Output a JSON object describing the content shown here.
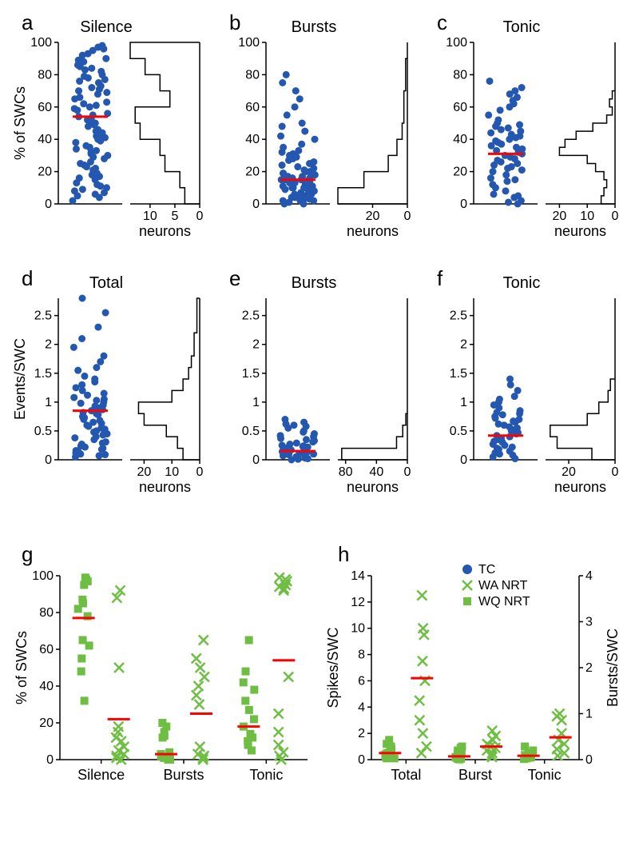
{
  "colors": {
    "point_blue": "#2457b0",
    "median_red": "#ff0000",
    "green": "#6fbe44",
    "axis": "#000000",
    "bg": "#ffffff"
  },
  "fonts": {
    "panel_label_size": 26,
    "title_size": 20,
    "axis_label_size": 18,
    "tick_size": 16,
    "legend_size": 16
  },
  "marker": {
    "radius": 4.5,
    "stroke_width": 1.2,
    "median_width": 3
  },
  "panels": {
    "a": {
      "label": "a",
      "title": "Silence",
      "ylabel": "% of SWCs",
      "ylim": [
        0,
        100
      ],
      "yticks": [
        0,
        20,
        40,
        60,
        80,
        100
      ],
      "xlabel_hist": "neurons",
      "hist_xlim": [
        0,
        14
      ],
      "hist_xticks": [
        10,
        5,
        0
      ],
      "median": 54,
      "scatter_y": [
        2,
        4,
        5,
        6,
        7,
        8,
        9,
        10,
        11,
        12,
        13,
        15,
        16,
        17,
        18,
        19,
        21,
        22,
        23,
        24,
        25,
        26,
        28,
        29,
        30,
        31,
        32,
        33,
        34,
        35,
        36,
        38,
        39,
        40,
        41,
        42,
        43,
        44,
        45,
        46,
        48,
        49,
        50,
        51,
        52,
        53,
        54,
        55,
        56,
        58,
        59,
        60,
        61,
        62,
        63,
        65,
        66,
        68,
        69,
        70,
        71,
        72,
        73,
        75,
        76,
        77,
        78,
        79,
        80,
        82,
        83,
        84,
        85,
        86,
        88,
        89,
        90,
        92,
        93,
        95,
        96,
        97,
        98
      ],
      "hist_bins": [
        [
          0,
          10,
          3
        ],
        [
          10,
          20,
          4
        ],
        [
          20,
          30,
          7
        ],
        [
          30,
          40,
          8
        ],
        [
          40,
          50,
          12
        ],
        [
          50,
          60,
          13
        ],
        [
          60,
          70,
          6
        ],
        [
          70,
          80,
          8
        ],
        [
          80,
          90,
          11
        ],
        [
          90,
          100,
          14
        ]
      ]
    },
    "b": {
      "label": "b",
      "title": "Bursts",
      "ylim": [
        0,
        100
      ],
      "yticks": [
        0,
        20,
        40,
        60,
        80,
        100
      ],
      "xlabel_hist": "neurons",
      "hist_xlim": [
        0,
        40
      ],
      "hist_xticks": [
        20,
        0
      ],
      "median": 15,
      "scatter_y": [
        0,
        0,
        1,
        1,
        2,
        2,
        2,
        3,
        3,
        4,
        4,
        5,
        5,
        5,
        6,
        6,
        7,
        7,
        8,
        8,
        9,
        9,
        10,
        10,
        10,
        11,
        11,
        12,
        12,
        13,
        13,
        14,
        14,
        15,
        15,
        15,
        16,
        16,
        17,
        17,
        18,
        18,
        19,
        19,
        20,
        20,
        21,
        22,
        23,
        24,
        25,
        26,
        27,
        28,
        29,
        30,
        31,
        32,
        33,
        35,
        37,
        40,
        42,
        45,
        48,
        50,
        55,
        60,
        65,
        70,
        75,
        80
      ],
      "hist_bins": [
        [
          0,
          10,
          40
        ],
        [
          10,
          20,
          25
        ],
        [
          20,
          30,
          11
        ],
        [
          30,
          40,
          6
        ],
        [
          40,
          50,
          3
        ],
        [
          50,
          60,
          2
        ],
        [
          60,
          70,
          2
        ],
        [
          70,
          80,
          1
        ],
        [
          80,
          90,
          1
        ]
      ]
    },
    "c": {
      "label": "c",
      "title": "Tonic",
      "ylim": [
        0,
        100
      ],
      "yticks": [
        0,
        20,
        40,
        60,
        80,
        100
      ],
      "xlabel_hist": "neurons",
      "hist_xlim": [
        0,
        25
      ],
      "hist_xticks": [
        20,
        10,
        0
      ],
      "median": 31,
      "scatter_y": [
        0,
        1,
        2,
        4,
        5,
        6,
        8,
        10,
        12,
        14,
        15,
        16,
        18,
        20,
        21,
        22,
        23,
        24,
        25,
        26,
        27,
        28,
        29,
        30,
        31,
        32,
        33,
        34,
        35,
        36,
        37,
        38,
        39,
        40,
        41,
        42,
        43,
        44,
        45,
        46,
        47,
        48,
        49,
        50,
        52,
        55,
        58,
        60,
        62,
        64,
        66,
        68,
        70,
        72,
        76
      ],
      "hist_bins": [
        [
          0,
          5,
          5
        ],
        [
          5,
          10,
          4
        ],
        [
          10,
          15,
          3
        ],
        [
          15,
          20,
          4
        ],
        [
          20,
          25,
          7
        ],
        [
          25,
          30,
          10
        ],
        [
          30,
          35,
          20
        ],
        [
          35,
          40,
          18
        ],
        [
          40,
          45,
          14
        ],
        [
          45,
          50,
          8
        ],
        [
          50,
          55,
          3
        ],
        [
          55,
          60,
          1
        ],
        [
          60,
          65,
          2
        ],
        [
          65,
          70,
          1
        ]
      ]
    },
    "d": {
      "label": "d",
      "title": "Total",
      "ylabel": "Events/SWC",
      "ylim": [
        0,
        2.8
      ],
      "yticks": [
        0,
        0.5,
        1.0,
        1.5,
        2.0,
        2.5
      ],
      "xlabel_hist": "neurons",
      "hist_xlim": [
        0,
        25
      ],
      "hist_xticks": [
        20,
        10,
        0
      ],
      "median": 0.85,
      "scatter_y": [
        0.05,
        0.07,
        0.09,
        0.1,
        0.12,
        0.14,
        0.16,
        0.18,
        0.2,
        0.22,
        0.24,
        0.27,
        0.29,
        0.31,
        0.35,
        0.38,
        0.4,
        0.43,
        0.45,
        0.48,
        0.5,
        0.53,
        0.55,
        0.58,
        0.6,
        0.63,
        0.65,
        0.68,
        0.7,
        0.73,
        0.75,
        0.78,
        0.8,
        0.82,
        0.85,
        0.87,
        0.9,
        0.93,
        0.95,
        0.98,
        1.0,
        1.03,
        1.05,
        1.08,
        1.12,
        1.15,
        1.2,
        1.25,
        1.3,
        1.35,
        1.4,
        1.45,
        1.55,
        1.6,
        1.7,
        1.8,
        1.95,
        2.1,
        2.3,
        2.55,
        2.8
      ],
      "hist_bins": [
        [
          0,
          0.2,
          6
        ],
        [
          0.2,
          0.4,
          8
        ],
        [
          0.4,
          0.6,
          12
        ],
        [
          0.6,
          0.8,
          20
        ],
        [
          0.8,
          1.0,
          22
        ],
        [
          1.0,
          1.2,
          10
        ],
        [
          1.2,
          1.4,
          6
        ],
        [
          1.4,
          1.6,
          4
        ],
        [
          1.6,
          1.8,
          3
        ],
        [
          1.8,
          2.0,
          2
        ],
        [
          2.0,
          2.2,
          2
        ],
        [
          2.2,
          2.4,
          1
        ],
        [
          2.4,
          2.6,
          1
        ],
        [
          2.6,
          2.8,
          1
        ]
      ]
    },
    "e": {
      "label": "e",
      "title": "Bursts",
      "ylim": [
        0,
        2.8
      ],
      "yticks": [
        0,
        0.5,
        1.0,
        1.5,
        2.0,
        2.5
      ],
      "xlabel_hist": "neurons",
      "hist_xlim": [
        0,
        90
      ],
      "hist_xticks": [
        80,
        40,
        0
      ],
      "median": 0.15,
      "scatter_y": [
        0.0,
        0.01,
        0.02,
        0.03,
        0.04,
        0.05,
        0.06,
        0.07,
        0.08,
        0.09,
        0.1,
        0.11,
        0.12,
        0.13,
        0.14,
        0.15,
        0.16,
        0.17,
        0.18,
        0.19,
        0.2,
        0.21,
        0.22,
        0.23,
        0.24,
        0.25,
        0.27,
        0.29,
        0.31,
        0.33,
        0.35,
        0.37,
        0.4,
        0.42,
        0.45,
        0.48,
        0.5,
        0.55,
        0.58,
        0.6,
        0.62,
        0.65,
        0.7
      ],
      "hist_bins": [
        [
          0,
          0.2,
          85
        ],
        [
          0.2,
          0.4,
          14
        ],
        [
          0.4,
          0.6,
          6
        ],
        [
          0.6,
          0.8,
          2
        ]
      ]
    },
    "f": {
      "label": "f",
      "title": "Tonic",
      "ylim": [
        0,
        2.8
      ],
      "yticks": [
        0,
        0.5,
        1.0,
        1.5,
        2.0,
        2.5
      ],
      "xlabel_hist": "neurons",
      "hist_xlim": [
        0,
        30
      ],
      "hist_xticks": [
        20,
        0
      ],
      "median": 0.42,
      "scatter_y": [
        0.02,
        0.05,
        0.08,
        0.1,
        0.12,
        0.15,
        0.18,
        0.2,
        0.22,
        0.25,
        0.27,
        0.3,
        0.32,
        0.35,
        0.37,
        0.4,
        0.42,
        0.45,
        0.47,
        0.5,
        0.52,
        0.55,
        0.57,
        0.6,
        0.62,
        0.65,
        0.67,
        0.7,
        0.72,
        0.75,
        0.78,
        0.8,
        0.82,
        0.85,
        0.9,
        0.95,
        1.0,
        1.05,
        1.1,
        1.2,
        1.3,
        1.4
      ],
      "hist_bins": [
        [
          0,
          0.2,
          10
        ],
        [
          0.2,
          0.4,
          25
        ],
        [
          0.4,
          0.6,
          28
        ],
        [
          0.6,
          0.8,
          12
        ],
        [
          0.8,
          1.0,
          7
        ],
        [
          1.0,
          1.2,
          3
        ],
        [
          1.2,
          1.4,
          2
        ]
      ]
    },
    "g": {
      "label": "g",
      "ylabel": "% of SWCs",
      "ylim": [
        0,
        100
      ],
      "yticks": [
        0,
        20,
        40,
        60,
        80,
        100
      ],
      "categories": [
        "Silence",
        "Bursts",
        "Tonic"
      ],
      "groups": [
        {
          "cat": "Silence",
          "wq_y": [
            95,
            99,
            98,
            97,
            87,
            85,
            82,
            78,
            65,
            62,
            55,
            48,
            32
          ],
          "wa_y": [
            0,
            1,
            2,
            3,
            5,
            7,
            10,
            12,
            15,
            18,
            50,
            88,
            92
          ],
          "wq_median": 77,
          "wa_median": 22
        },
        {
          "cat": "Bursts",
          "wq_y": [
            0,
            0,
            1,
            1,
            2,
            3,
            4,
            12,
            13,
            15,
            18,
            20
          ],
          "wa_y": [
            0,
            1,
            2,
            3,
            7,
            30,
            35,
            40,
            45,
            50,
            55,
            65
          ],
          "wq_median": 3,
          "wa_median": 25
        },
        {
          "cat": "Tonic",
          "wq_y": [
            5,
            8,
            10,
            12,
            14,
            18,
            22,
            27,
            32,
            38,
            42,
            48,
            65
          ],
          "wa_y": [
            0,
            2,
            4,
            8,
            15,
            25,
            45,
            92,
            93,
            94,
            95,
            97,
            98,
            99
          ],
          "wq_median": 18,
          "wa_median": 54
        }
      ]
    },
    "h": {
      "label": "h",
      "ylabel_left": "Spikes/SWC",
      "ylabel_right": "Bursts/SWC",
      "ylim_left": [
        0,
        14
      ],
      "yticks_left": [
        0,
        2,
        4,
        6,
        8,
        10,
        12,
        14
      ],
      "ylim_right": [
        0,
        4
      ],
      "yticks_right": [
        0,
        1,
        2,
        3,
        4
      ],
      "categories": [
        "Total",
        "Burst",
        "Tonic"
      ],
      "legend": [
        {
          "label": "TC",
          "marker": "circle",
          "color": "#2457b0"
        },
        {
          "label": "WA NRT",
          "marker": "x",
          "color": "#6fbe44"
        },
        {
          "label": "WQ NRT",
          "marker": "square",
          "color": "#6fbe44"
        }
      ],
      "groups": [
        {
          "cat": "Total",
          "wq_y": [
            0.1,
            0.1,
            0.2,
            0.3,
            0.4,
            0.5,
            0.6,
            0.8,
            1.0,
            1.2,
            1.5
          ],
          "wa_y": [
            0.5,
            1.0,
            2.0,
            3.0,
            4.5,
            6.0,
            7.5,
            9.5,
            10.0,
            12.5
          ],
          "wq_median": 0.5,
          "wa_median": 6.2
        },
        {
          "cat": "Burst",
          "wq_y": [
            0.02,
            0.05,
            0.08,
            0.1,
            0.15,
            0.2,
            0.3,
            0.4,
            0.5,
            0.7,
            0.9,
            1.0
          ],
          "wa_y": [
            0.2,
            0.3,
            0.5,
            0.7,
            0.9,
            1.0,
            1.2,
            1.5,
            1.8,
            2.2
          ],
          "wq_median": 0.25,
          "wa_median": 1.0
        },
        {
          "cat": "Tonic",
          "wq_y": [
            0.05,
            0.1,
            0.15,
            0.2,
            0.25,
            0.3,
            0.35,
            0.5,
            0.7,
            1.0
          ],
          "wa_y": [
            0.3,
            0.5,
            0.8,
            1.2,
            1.5,
            2.0,
            3.0,
            3.3,
            3.5
          ],
          "wq_median": 0.3,
          "wa_median": 1.7
        }
      ]
    }
  }
}
